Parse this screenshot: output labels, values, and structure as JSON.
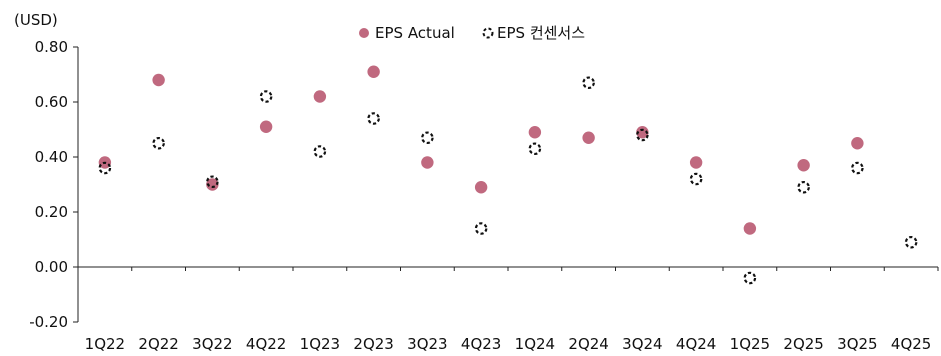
{
  "chart_data": {
    "type": "scatter",
    "title": "",
    "unit_label": "(USD)",
    "xlabel": "",
    "ylabel": "",
    "categories": [
      "1Q22",
      "2Q22",
      "3Q22",
      "4Q22",
      "1Q23",
      "2Q23",
      "3Q23",
      "4Q23",
      "1Q24",
      "2Q24",
      "3Q24",
      "4Q24",
      "1Q25",
      "2Q25",
      "3Q25",
      "4Q25"
    ],
    "ylim": [
      -0.2,
      0.8
    ],
    "yticks": [
      -0.2,
      0.0,
      0.2,
      0.4,
      0.6,
      0.8
    ],
    "ytick_labels": [
      "-0.20",
      "0.00",
      "0.20",
      "0.40",
      "0.60",
      "0.80"
    ],
    "grid": false,
    "legend_position": "top-center",
    "series": [
      {
        "name": "EPS Actual",
        "marker": "filled-circle",
        "color": "#c0697f",
        "values": [
          0.38,
          0.68,
          0.3,
          0.51,
          0.62,
          0.71,
          0.38,
          0.29,
          0.49,
          0.47,
          0.49,
          0.38,
          0.14,
          0.37,
          0.45,
          null
        ]
      },
      {
        "name": "EPS 컨센서스",
        "marker": "dashed-open-circle",
        "color": "#111111",
        "values": [
          0.36,
          0.45,
          0.31,
          0.62,
          0.42,
          0.54,
          0.47,
          0.14,
          0.43,
          0.67,
          0.48,
          0.32,
          -0.04,
          0.29,
          0.36,
          0.09
        ]
      }
    ]
  }
}
